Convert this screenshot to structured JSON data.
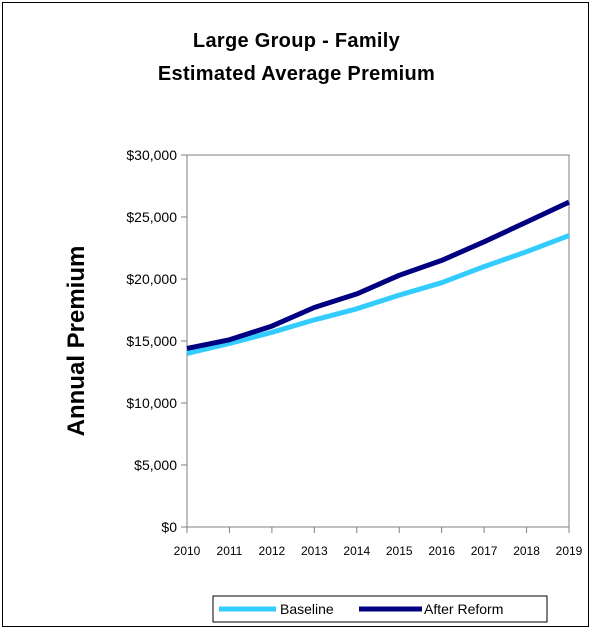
{
  "chart_data": {
    "type": "line",
    "title_line1": "Large Group - Family",
    "title_line2": "Estimated Average Premium",
    "ylabel": "Annual Premium",
    "xlabel": "",
    "x": [
      "2010",
      "2011",
      "2012",
      "2013",
      "2014",
      "2015",
      "2016",
      "2017",
      "2018",
      "2019"
    ],
    "ylim": [
      0,
      30000
    ],
    "yticks": [
      0,
      5000,
      10000,
      15000,
      20000,
      25000,
      30000
    ],
    "ytick_labels": [
      "$0",
      "$5,000",
      "$10,000",
      "$15,000",
      "$20,000",
      "$25,000",
      "$30,000"
    ],
    "grid": false,
    "legend_position": "bottom",
    "series": [
      {
        "name": "Baseline",
        "color": "#33ccff",
        "values": [
          14000,
          14800,
          15700,
          16700,
          17600,
          18700,
          19700,
          21000,
          22200,
          23500
        ]
      },
      {
        "name": "After Reform",
        "color": "#000080",
        "values": [
          14400,
          15100,
          16200,
          17700,
          18800,
          20300,
          21500,
          23000,
          24600,
          26200
        ]
      }
    ]
  }
}
